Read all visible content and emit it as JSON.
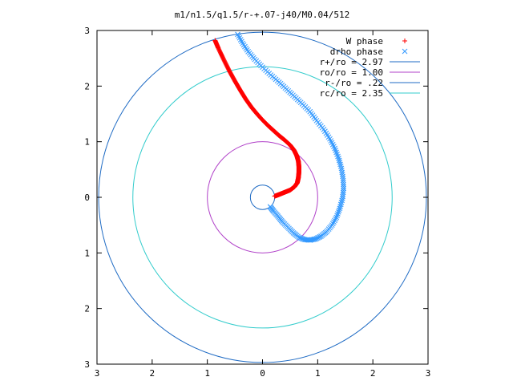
{
  "chart_data": {
    "type": "scatter",
    "title": "m1/n1.5/q1.5/r-+.07-j40/M0.04/512",
    "xlabel": "",
    "ylabel": "",
    "xlim": [
      -3,
      3
    ],
    "ylim": [
      -3,
      3
    ],
    "x_ticks": [
      "3",
      "2",
      "1",
      "0",
      "1",
      "2",
      "3"
    ],
    "y_ticks": [
      "3",
      "2",
      "1",
      "0",
      "1",
      "2",
      "3"
    ],
    "grid": false,
    "legend_position": "top-right",
    "series": [
      {
        "name": "W phase",
        "kind": "points",
        "marker": "+",
        "color": "#ff0000",
        "x": [
          0.22,
          0.3,
          0.4,
          0.5,
          0.58,
          0.63,
          0.65,
          0.66,
          0.66,
          0.65,
          0.62,
          0.57,
          0.5,
          0.4,
          0.3,
          0.2,
          0.1,
          0.0,
          -0.1,
          -0.2,
          -0.3,
          -0.4,
          -0.5,
          -0.6,
          -0.7,
          -0.8,
          -0.86
        ],
        "y": [
          0.02,
          0.05,
          0.09,
          0.13,
          0.19,
          0.26,
          0.35,
          0.45,
          0.55,
          0.65,
          0.75,
          0.85,
          0.94,
          1.03,
          1.11,
          1.2,
          1.29,
          1.39,
          1.5,
          1.62,
          1.76,
          1.92,
          2.09,
          2.27,
          2.47,
          2.68,
          2.82
        ]
      },
      {
        "name": "drho phase",
        "kind": "points",
        "marker": "x",
        "color": "#3399ff",
        "x": [
          0.14,
          0.2,
          0.28,
          0.36,
          0.46,
          0.56,
          0.66,
          0.76,
          0.86,
          0.96,
          1.06,
          1.16,
          1.26,
          1.34,
          1.4,
          1.45,
          1.47,
          1.46,
          1.43,
          1.38,
          1.31,
          1.22,
          1.11,
          0.98,
          0.86,
          0.72,
          0.58,
          0.44,
          0.3,
          0.15,
          0.0,
          -0.14,
          -0.26,
          -0.36,
          -0.45
        ],
        "y": [
          -0.17,
          -0.25,
          -0.34,
          -0.44,
          -0.54,
          -0.64,
          -0.72,
          -0.76,
          -0.77,
          -0.75,
          -0.7,
          -0.62,
          -0.5,
          -0.36,
          -0.2,
          -0.02,
          0.16,
          0.34,
          0.52,
          0.7,
          0.88,
          1.05,
          1.22,
          1.38,
          1.54,
          1.68,
          1.81,
          1.94,
          2.07,
          2.2,
          2.34,
          2.48,
          2.62,
          2.77,
          2.93
        ]
      },
      {
        "name": "r+/ro = 2.97",
        "kind": "circle",
        "radius": 2.97,
        "color": "#1f6bc4"
      },
      {
        "name": "ro/ro = 1.00",
        "kind": "circle",
        "radius": 1.0,
        "color": "#b040c8"
      },
      {
        "name": "r-/ro = .22",
        "kind": "circle",
        "radius": 0.22,
        "color": "#1f6bc4"
      },
      {
        "name": "rc/ro = 2.35",
        "kind": "circle",
        "radius": 2.35,
        "color": "#33cccc"
      }
    ]
  }
}
